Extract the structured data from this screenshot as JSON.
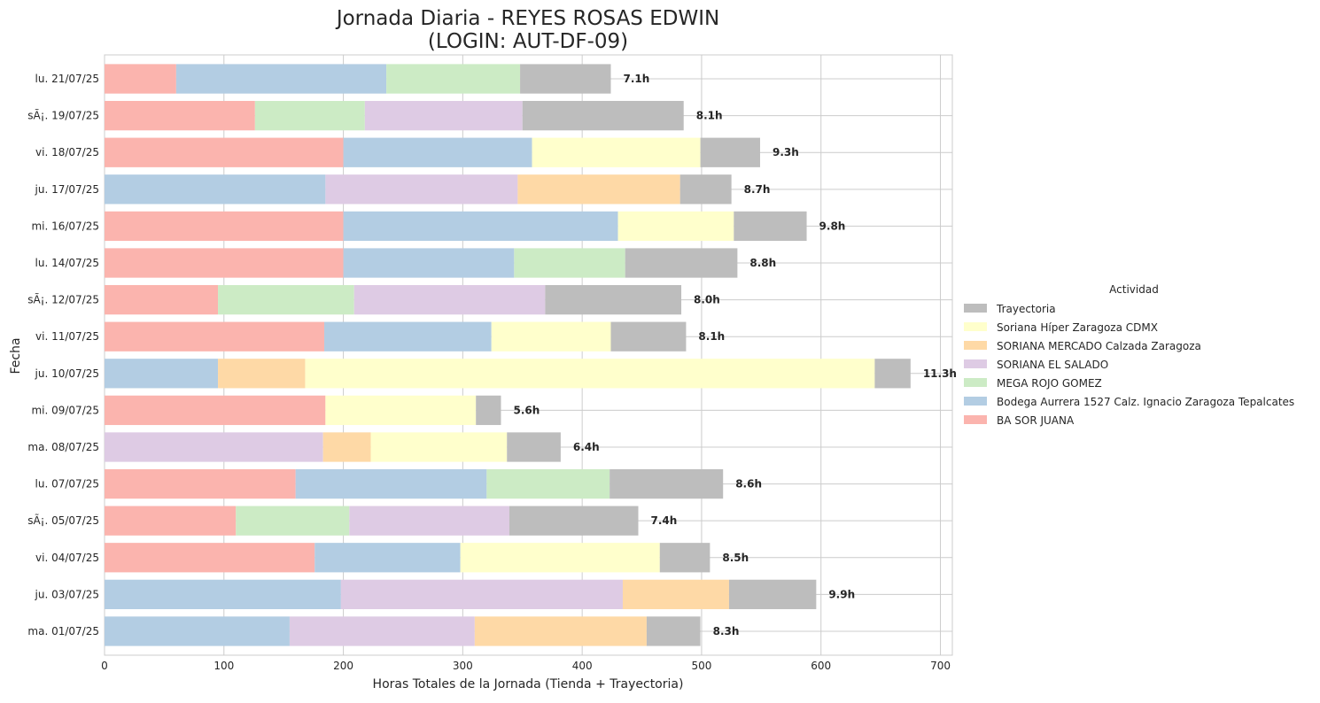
{
  "chart_data": {
    "type": "bar",
    "orientation": "horizontal",
    "stacked": true,
    "title": "Jornada Diaria - REYES ROSAS EDWIN\n(LOGIN: AUT-DF-09)",
    "xlabel": "Horas Totales de la Jornada (Tienda + Trayectoria)",
    "ylabel": "Fecha",
    "xlim": [
      0,
      710
    ],
    "xticks": [
      0,
      100,
      200,
      300,
      400,
      500,
      600,
      700
    ],
    "grid": true,
    "legend_title": "Actividad",
    "legend_position": "right",
    "categories": [
      "lu. 21/07/25",
      "sÃ¡. 19/07/25",
      "vi. 18/07/25",
      "ju. 17/07/25",
      "mi. 16/07/25",
      "lu. 14/07/25",
      "sÃ¡. 12/07/25",
      "vi. 11/07/25",
      "ju. 10/07/25",
      "mi. 09/07/25",
      "ma. 08/07/25",
      "lu. 07/07/25",
      "sÃ¡. 05/07/25",
      "vi. 04/07/25",
      "ju. 03/07/25",
      "ma. 01/07/25"
    ],
    "totals": [
      "7.1h",
      "8.1h",
      "9.3h",
      "8.7h",
      "9.8h",
      "8.8h",
      "8.0h",
      "8.1h",
      "11.3h",
      "5.6h",
      "6.4h",
      "8.6h",
      "7.4h",
      "8.5h",
      "9.9h",
      "8.3h"
    ],
    "series": [
      {
        "name": "BA SOR JUANA",
        "color": "#fbb4ae",
        "values": [
          60,
          126,
          200,
          0,
          200,
          200,
          95,
          184,
          0,
          185,
          0,
          160,
          110,
          176,
          0,
          0
        ]
      },
      {
        "name": "Bodega Aurrera 1527 Calz. Ignacio Zaragoza Tepalcates",
        "color": "#b3cde3",
        "values": [
          176,
          0,
          158,
          185,
          230,
          143,
          0,
          140,
          95,
          0,
          0,
          160,
          0,
          122,
          198,
          155
        ]
      },
      {
        "name": "MEGA ROJO GOMEZ",
        "color": "#ccebc5",
        "values": [
          112,
          92,
          0,
          0,
          0,
          93,
          114,
          0,
          0,
          0,
          0,
          103,
          95,
          0,
          0,
          0
        ]
      },
      {
        "name": "SORIANA EL SALADO",
        "color": "#decbe4",
        "values": [
          0,
          132,
          0,
          161,
          0,
          0,
          160,
          0,
          0,
          0,
          183,
          0,
          134,
          0,
          236,
          155
        ]
      },
      {
        "name": "SORIANA MERCADO Calzada Zaragoza",
        "color": "#fed9a6",
        "values": [
          0,
          0,
          0,
          136,
          0,
          0,
          0,
          0,
          73,
          0,
          40,
          0,
          0,
          0,
          89,
          144
        ]
      },
      {
        "name": "Soriana Híper Zaragoza CDMX",
        "color": "#ffffcc",
        "values": [
          0,
          0,
          141,
          0,
          97,
          0,
          0,
          100,
          477,
          126,
          114,
          0,
          0,
          167,
          0,
          0
        ]
      },
      {
        "name": "Trayectoria",
        "color": "#bdbdbd",
        "values": [
          76,
          135,
          50,
          43,
          61,
          94,
          114,
          63,
          30,
          21,
          45,
          95,
          108,
          42,
          73,
          45
        ]
      }
    ],
    "legend_order": [
      "Trayectoria",
      "Soriana Híper Zaragoza CDMX",
      "SORIANA MERCADO Calzada Zaragoza",
      "SORIANA EL SALADO",
      "MEGA ROJO GOMEZ",
      "Bodega Aurrera 1527 Calz. Ignacio Zaragoza Tepalcates",
      "BA SOR JUANA"
    ]
  }
}
